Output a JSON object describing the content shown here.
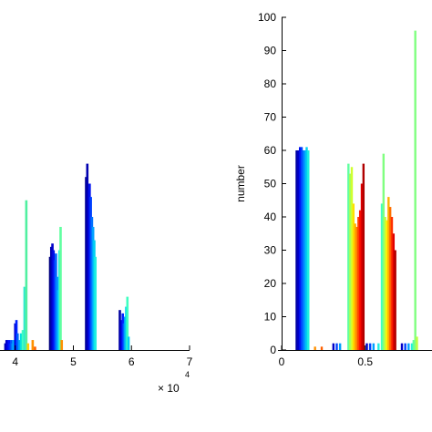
{
  "chart_data": [
    {
      "type": "bar",
      "title": "",
      "xlabel": "",
      "ylabel": "",
      "x_multiplier_label": "× 10",
      "x_multiplier_exponent": "4",
      "xlim": [
        3.8,
        7.0
      ],
      "ylim": [
        0,
        100
      ],
      "x_ticks": [
        {
          "value": 4,
          "label": "4"
        },
        {
          "value": 5,
          "label": "5"
        },
        {
          "value": 6,
          "label": "6"
        },
        {
          "value": 7,
          "label": "7"
        }
      ],
      "colormap": "jet",
      "bars": [
        {
          "x": 3.83,
          "y": 2,
          "c": "#0000AA"
        },
        {
          "x": 3.85,
          "y": 3,
          "c": "#0000CC"
        },
        {
          "x": 3.87,
          "y": 2,
          "c": "#0000E0"
        },
        {
          "x": 3.89,
          "y": 3,
          "c": "#0010FF"
        },
        {
          "x": 3.91,
          "y": 2,
          "c": "#0030FF"
        },
        {
          "x": 3.93,
          "y": 3,
          "c": "#0050FF"
        },
        {
          "x": 3.95,
          "y": 2,
          "c": "#0080FF"
        },
        {
          "x": 3.97,
          "y": 3,
          "c": "#00B0FF"
        },
        {
          "x": 4.0,
          "y": 8,
          "c": "#0000CC"
        },
        {
          "x": 4.02,
          "y": 9,
          "c": "#0020FF"
        },
        {
          "x": 4.04,
          "y": 5,
          "c": "#0060FF"
        },
        {
          "x": 4.07,
          "y": 3,
          "c": "#00A0FF"
        },
        {
          "x": 4.1,
          "y": 5,
          "c": "#00E0E0"
        },
        {
          "x": 4.13,
          "y": 6,
          "c": "#40FFBF"
        },
        {
          "x": 4.16,
          "y": 19,
          "c": "#30E8D0"
        },
        {
          "x": 4.19,
          "y": 45,
          "c": "#50F0A0"
        },
        {
          "x": 4.22,
          "y": 2,
          "c": "#FFD000"
        },
        {
          "x": 4.3,
          "y": 3,
          "c": "#FF9000"
        },
        {
          "x": 4.34,
          "y": 1,
          "c": "#FF6000"
        },
        {
          "x": 4.6,
          "y": 28,
          "c": "#000080"
        },
        {
          "x": 4.62,
          "y": 31,
          "c": "#0000A8"
        },
        {
          "x": 4.64,
          "y": 32,
          "c": "#0000C8"
        },
        {
          "x": 4.66,
          "y": 30,
          "c": "#0010E8"
        },
        {
          "x": 4.68,
          "y": 27,
          "c": "#0030FF"
        },
        {
          "x": 4.7,
          "y": 29,
          "c": "#0060FF"
        },
        {
          "x": 4.72,
          "y": 22,
          "c": "#0090FF"
        },
        {
          "x": 4.74,
          "y": 18,
          "c": "#00C0FF"
        },
        {
          "x": 4.76,
          "y": 30,
          "c": "#20F0E0"
        },
        {
          "x": 4.78,
          "y": 37,
          "c": "#60FFA0"
        },
        {
          "x": 4.8,
          "y": 3,
          "c": "#FF9000"
        },
        {
          "x": 5.22,
          "y": 52,
          "c": "#000090"
        },
        {
          "x": 5.24,
          "y": 56,
          "c": "#0000B0"
        },
        {
          "x": 5.26,
          "y": 48,
          "c": "#0000D0"
        },
        {
          "x": 5.28,
          "y": 50,
          "c": "#0010F0"
        },
        {
          "x": 5.3,
          "y": 46,
          "c": "#0040FF"
        },
        {
          "x": 5.32,
          "y": 40,
          "c": "#0070FF"
        },
        {
          "x": 5.34,
          "y": 37,
          "c": "#00A0FF"
        },
        {
          "x": 5.36,
          "y": 33,
          "c": "#00D0F0"
        },
        {
          "x": 5.38,
          "y": 28,
          "c": "#20F0E0"
        },
        {
          "x": 5.8,
          "y": 12,
          "c": "#0000A0"
        },
        {
          "x": 5.82,
          "y": 9,
          "c": "#0000D0"
        },
        {
          "x": 5.85,
          "y": 11,
          "c": "#0020FF"
        },
        {
          "x": 5.87,
          "y": 8,
          "c": "#0060FF"
        },
        {
          "x": 5.89,
          "y": 10,
          "c": "#00A0FF"
        },
        {
          "x": 5.91,
          "y": 13,
          "c": "#00D0F0"
        },
        {
          "x": 5.93,
          "y": 16,
          "c": "#40FFC0"
        },
        {
          "x": 5.95,
          "y": 4,
          "c": "#00D0F0"
        }
      ]
    },
    {
      "type": "bar",
      "title": "",
      "xlabel": "",
      "ylabel": "number",
      "xlim": [
        0,
        0.9
      ],
      "ylim": [
        0,
        100
      ],
      "x_ticks": [
        {
          "value": 0,
          "label": "0"
        },
        {
          "value": 0.5,
          "label": "0.5"
        }
      ],
      "y_ticks": [
        {
          "value": 0,
          "label": "0"
        },
        {
          "value": 10,
          "label": "10"
        },
        {
          "value": 20,
          "label": "20"
        },
        {
          "value": 30,
          "label": "30"
        },
        {
          "value": 40,
          "label": "40"
        },
        {
          "value": 50,
          "label": "50"
        },
        {
          "value": 60,
          "label": "60"
        },
        {
          "value": 70,
          "label": "70"
        },
        {
          "value": 80,
          "label": "80"
        },
        {
          "value": 90,
          "label": "90"
        },
        {
          "value": 100,
          "label": "100"
        }
      ],
      "colormap": "jet",
      "bars": [
        {
          "x": 0.09,
          "y": 60,
          "c": "#0000A0"
        },
        {
          "x": 0.1,
          "y": 60,
          "c": "#0000C8"
        },
        {
          "x": 0.11,
          "y": 61,
          "c": "#0010F0"
        },
        {
          "x": 0.12,
          "y": 61,
          "c": "#0040FF"
        },
        {
          "x": 0.13,
          "y": 60,
          "c": "#0070FF"
        },
        {
          "x": 0.14,
          "y": 60,
          "c": "#00A0FF"
        },
        {
          "x": 0.15,
          "y": 61,
          "c": "#00D0F0"
        },
        {
          "x": 0.16,
          "y": 60,
          "c": "#20F0E0"
        },
        {
          "x": 0.2,
          "y": 1,
          "c": "#FF9000"
        },
        {
          "x": 0.24,
          "y": 1,
          "c": "#FF6000"
        },
        {
          "x": 0.31,
          "y": 2,
          "c": "#0000C8"
        },
        {
          "x": 0.33,
          "y": 2,
          "c": "#0040FF"
        },
        {
          "x": 0.35,
          "y": 2,
          "c": "#00A0FF"
        },
        {
          "x": 0.4,
          "y": 56,
          "c": "#60FFA0"
        },
        {
          "x": 0.41,
          "y": 53,
          "c": "#A0FF60"
        },
        {
          "x": 0.42,
          "y": 55,
          "c": "#D0FF30"
        },
        {
          "x": 0.43,
          "y": 44,
          "c": "#FFE000"
        },
        {
          "x": 0.44,
          "y": 38,
          "c": "#FFB000"
        },
        {
          "x": 0.45,
          "y": 37,
          "c": "#FF8000"
        },
        {
          "x": 0.46,
          "y": 40,
          "c": "#FF4000"
        },
        {
          "x": 0.47,
          "y": 42,
          "c": "#FF1000"
        },
        {
          "x": 0.48,
          "y": 50,
          "c": "#E00000"
        },
        {
          "x": 0.49,
          "y": 56,
          "c": "#B00000"
        },
        {
          "x": 0.51,
          "y": 2,
          "c": "#0000C8"
        },
        {
          "x": 0.53,
          "y": 2,
          "c": "#0040FF"
        },
        {
          "x": 0.55,
          "y": 2,
          "c": "#00A0FF"
        },
        {
          "x": 0.58,
          "y": 2,
          "c": "#20F0E0"
        },
        {
          "x": 0.6,
          "y": 44,
          "c": "#40FFC0"
        },
        {
          "x": 0.61,
          "y": 59,
          "c": "#80FF80"
        },
        {
          "x": 0.62,
          "y": 40,
          "c": "#C0FF40"
        },
        {
          "x": 0.63,
          "y": 39,
          "c": "#FFF000"
        },
        {
          "x": 0.64,
          "y": 46,
          "c": "#FFB000"
        },
        {
          "x": 0.65,
          "y": 43,
          "c": "#FF7000"
        },
        {
          "x": 0.66,
          "y": 40,
          "c": "#FF3000"
        },
        {
          "x": 0.67,
          "y": 35,
          "c": "#E00000"
        },
        {
          "x": 0.68,
          "y": 30,
          "c": "#B00000"
        },
        {
          "x": 0.72,
          "y": 2,
          "c": "#0000C8"
        },
        {
          "x": 0.74,
          "y": 2,
          "c": "#0040FF"
        },
        {
          "x": 0.76,
          "y": 2,
          "c": "#00A0FF"
        },
        {
          "x": 0.78,
          "y": 2,
          "c": "#20F0E0"
        },
        {
          "x": 0.79,
          "y": 3,
          "c": "#60FFA0"
        },
        {
          "x": 0.8,
          "y": 96,
          "c": "#80FF80"
        },
        {
          "x": 0.81,
          "y": 4,
          "c": "#C0FF40"
        }
      ]
    }
  ]
}
